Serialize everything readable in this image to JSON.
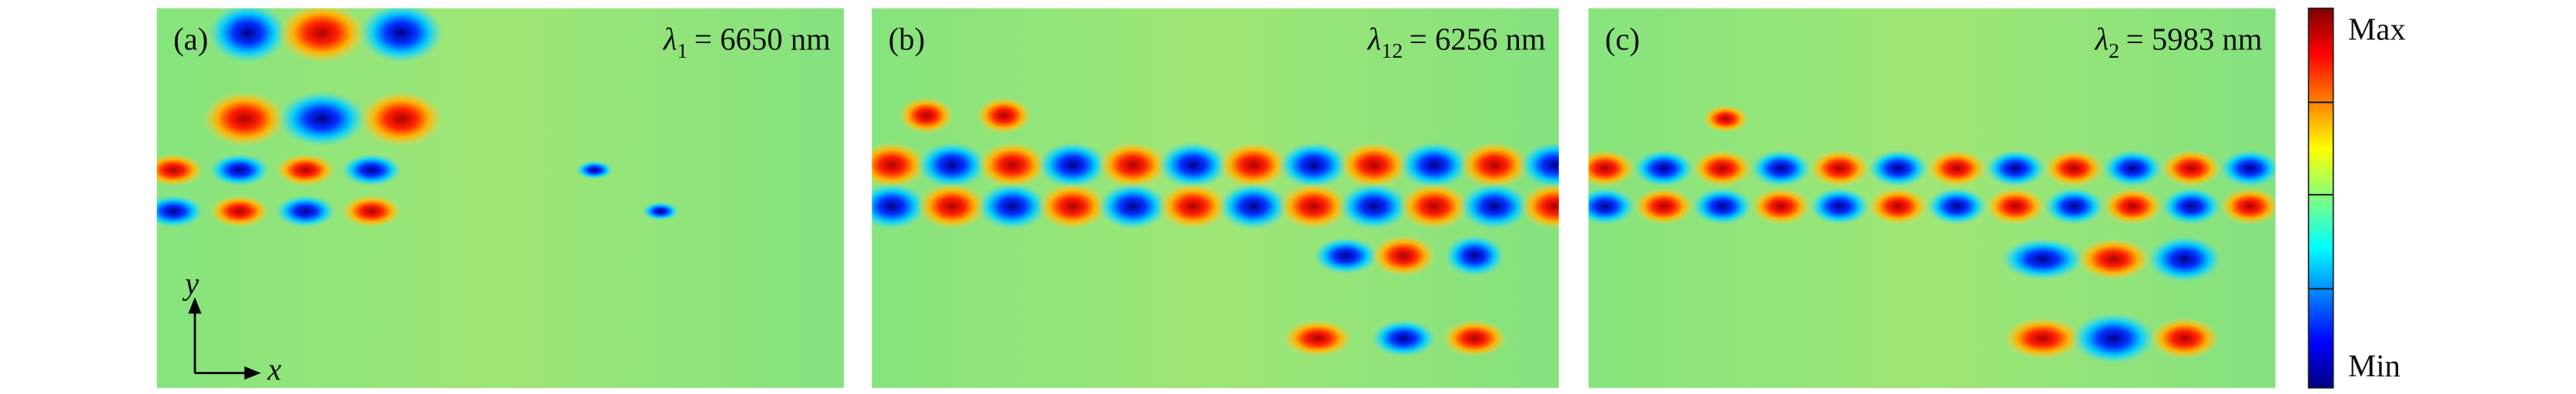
{
  "panels": [
    {
      "label": "(a)",
      "wavelength": {
        "symbol": "λ",
        "subscript": "1",
        "value": "= 6650 nm"
      }
    },
    {
      "label": "(b)",
      "wavelength": {
        "symbol": "λ",
        "subscript": "12",
        "value": "= 6256 nm"
      }
    },
    {
      "label": "(c)",
      "wavelength": {
        "symbol": "λ",
        "subscript": "2",
        "value": "= 5983 nm"
      }
    }
  ],
  "axes": {
    "y": "y",
    "x": "x"
  },
  "colorbar": {
    "max": "Max",
    "min": "Min"
  }
}
